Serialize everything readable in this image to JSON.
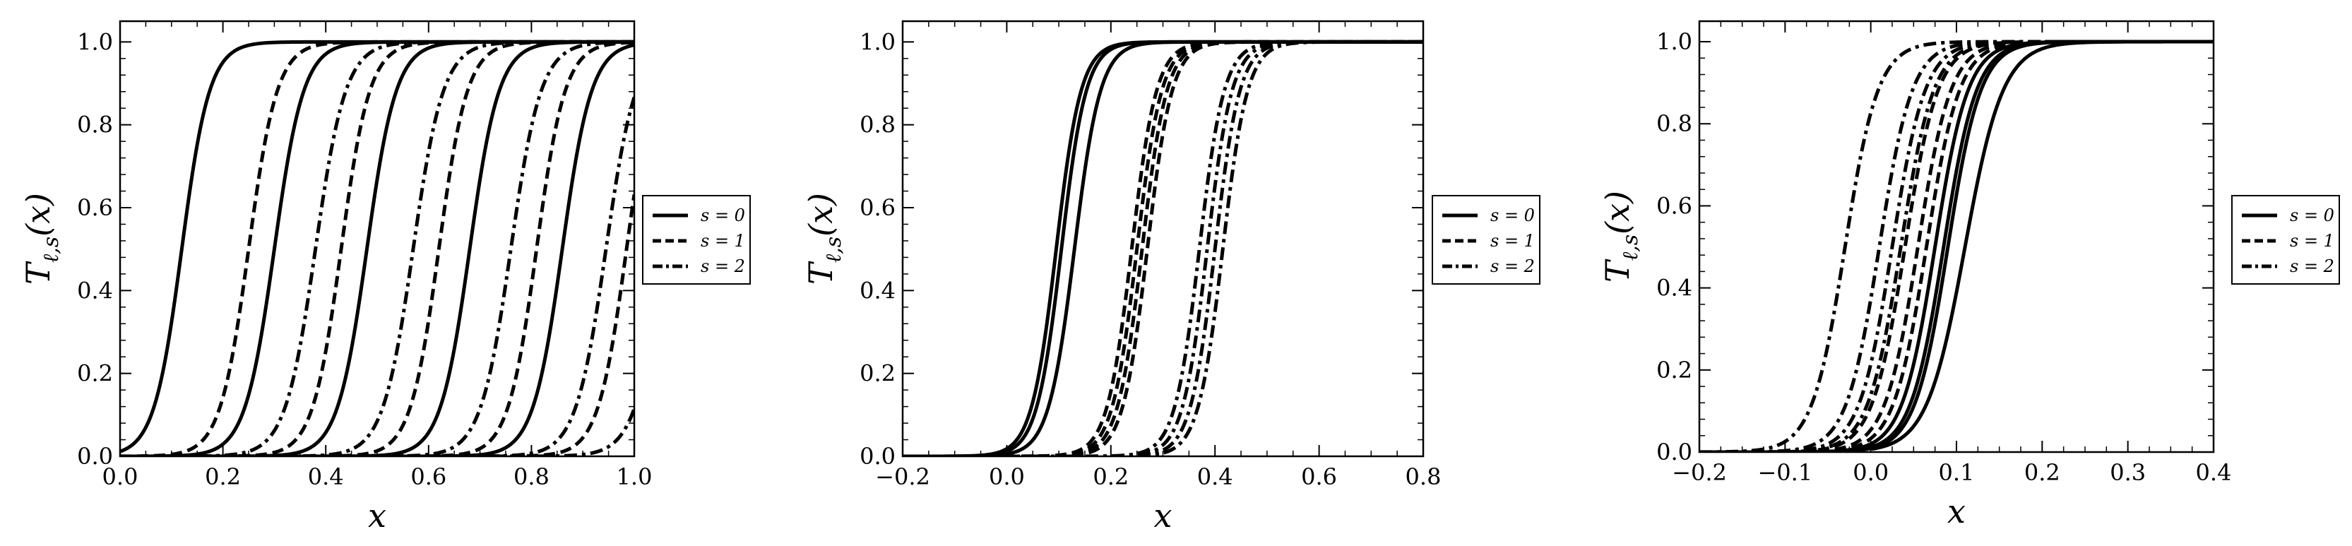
{
  "figure": {
    "x_label": "x",
    "y_label": "T_{ℓ,s}(x)",
    "y_label_main": "T",
    "y_label_sub": "ℓ,s",
    "y_label_arg": "(x)"
  },
  "legend": [
    {
      "label": "s = 0",
      "style": "solid"
    },
    {
      "label": "s = 1",
      "style": "dashed"
    },
    {
      "label": "s = 2",
      "style": "dashdot"
    }
  ],
  "colors": {
    "line": "#000000",
    "background": "#ffffff"
  },
  "chart_data": [
    {
      "type": "line",
      "title": "",
      "xlabel": "x",
      "ylabel": "T_{ℓ,s}(x)",
      "xlim": [
        0.0,
        1.0
      ],
      "ylim": [
        0.0,
        1.05
      ],
      "x_ticks": [
        "0.0",
        "0.2",
        "0.4",
        "0.6",
        "0.8",
        "1.0"
      ],
      "y_ticks": [
        "0.0",
        "0.2",
        "0.4",
        "0.6",
        "0.8",
        "1.0"
      ],
      "legend_position": "outside-right",
      "grid": false,
      "series": [
        {
          "s": 0,
          "x0": 0.12,
          "k": 37
        },
        {
          "s": 0,
          "x0": 0.3,
          "k": 35
        },
        {
          "s": 0,
          "x0": 0.48,
          "k": 35
        },
        {
          "s": 0,
          "x0": 0.68,
          "k": 35
        },
        {
          "s": 0,
          "x0": 0.86,
          "k": 35
        },
        {
          "s": 1,
          "x0": 0.25,
          "k": 36
        },
        {
          "s": 1,
          "x0": 0.43,
          "k": 36
        },
        {
          "s": 1,
          "x0": 0.62,
          "k": 36
        },
        {
          "s": 1,
          "x0": 0.81,
          "k": 36
        },
        {
          "s": 1,
          "x0": 0.985,
          "k": 36
        },
        {
          "s": 2,
          "x0": 0.38,
          "k": 34
        },
        {
          "s": 2,
          "x0": 0.57,
          "k": 34
        },
        {
          "s": 2,
          "x0": 0.76,
          "k": 34
        },
        {
          "s": 2,
          "x0": 0.945,
          "k": 34
        },
        {
          "s": 2,
          "x0": 1.06,
          "k": 34
        }
      ]
    },
    {
      "type": "line",
      "title": "",
      "xlabel": "x",
      "ylabel": "T_{ℓ,s}(x)",
      "xlim": [
        -0.2,
        0.8
      ],
      "ylim": [
        0.0,
        1.05
      ],
      "x_ticks": [
        "−0.2",
        "0.0",
        "0.2",
        "0.4",
        "0.6",
        "0.8"
      ],
      "y_ticks": [
        "0.0",
        "0.2",
        "0.4",
        "0.6",
        "0.8",
        "1.0"
      ],
      "legend_position": "outside-right",
      "grid": false,
      "series": [
        {
          "s": 0,
          "x0": 0.095,
          "k": 42
        },
        {
          "s": 0,
          "x0": 0.105,
          "k": 42
        },
        {
          "s": 0,
          "x0": 0.13,
          "k": 40
        },
        {
          "s": 1,
          "x0": 0.24,
          "k": 42
        },
        {
          "s": 1,
          "x0": 0.25,
          "k": 42
        },
        {
          "s": 1,
          "x0": 0.26,
          "k": 42
        },
        {
          "s": 1,
          "x0": 0.27,
          "k": 42
        },
        {
          "s": 2,
          "x0": 0.37,
          "k": 42
        },
        {
          "s": 2,
          "x0": 0.385,
          "k": 42
        },
        {
          "s": 2,
          "x0": 0.4,
          "k": 42
        },
        {
          "s": 2,
          "x0": 0.415,
          "k": 42
        }
      ]
    },
    {
      "type": "line",
      "title": "",
      "xlabel": "x",
      "ylabel": "T_{ℓ,s}(x)",
      "xlim": [
        -0.2,
        0.4
      ],
      "ylim": [
        0.0,
        1.05
      ],
      "x_ticks": [
        "−0.2",
        "−0.1",
        "0.0",
        "0.1",
        "0.2",
        "0.3",
        "0.4"
      ],
      "y_ticks": [
        "0.0",
        "0.2",
        "0.4",
        "0.6",
        "0.8",
        "1.0"
      ],
      "legend_position": "outside-right",
      "grid": false,
      "series": [
        {
          "s": 0,
          "x0": 0.075,
          "k": 52
        },
        {
          "s": 0,
          "x0": 0.085,
          "k": 52
        },
        {
          "s": 0,
          "x0": 0.09,
          "k": 52
        },
        {
          "s": 0,
          "x0": 0.11,
          "k": 45
        },
        {
          "s": 1,
          "x0": 0.04,
          "k": 52
        },
        {
          "s": 1,
          "x0": 0.055,
          "k": 52
        },
        {
          "s": 1,
          "x0": 0.065,
          "k": 52
        },
        {
          "s": 2,
          "x0": -0.03,
          "k": 52
        },
        {
          "s": 2,
          "x0": 0.01,
          "k": 52
        },
        {
          "s": 2,
          "x0": 0.025,
          "k": 52
        },
        {
          "s": 2,
          "x0": 0.035,
          "k": 52
        }
      ]
    }
  ]
}
